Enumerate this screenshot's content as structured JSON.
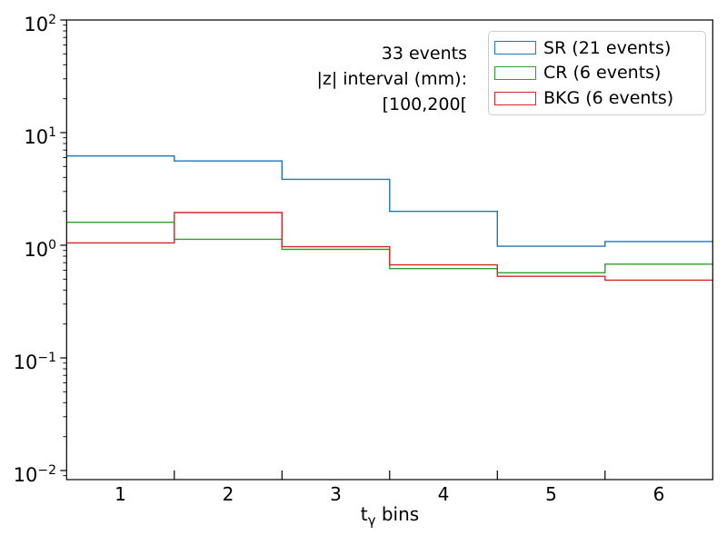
{
  "chart_data": {
    "type": "step-histogram",
    "yscale": "log",
    "grid": false,
    "xlim": [
      0.5,
      6.5
    ],
    "ylim": [
      0.01,
      100
    ],
    "x_bin_edges": [
      0.5,
      1.5,
      2.5,
      3.5,
      4.5,
      5.5,
      6.5
    ],
    "x_tick_labels": [
      "1",
      "2",
      "3",
      "4",
      "5",
      "6"
    ],
    "y_tick_exponents": [
      2,
      1,
      0,
      -1,
      -2
    ],
    "xlabel": {
      "pre": "t",
      "sub": "γ",
      "post": " bins"
    },
    "series": [
      {
        "name": "SR",
        "label": "SR (21 events)",
        "color": "#1f77b4",
        "values": [
          6.2,
          5.6,
          3.85,
          2.0,
          0.98,
          1.08
        ]
      },
      {
        "name": "CR",
        "label": "CR (6 events)",
        "color": "#2ca02c",
        "values": [
          1.6,
          1.13,
          0.92,
          0.62,
          0.57,
          0.68
        ]
      },
      {
        "name": "BKG",
        "label": "BKG (6 events)",
        "color": "#d62728",
        "values": [
          1.05,
          1.95,
          0.97,
          0.67,
          0.53,
          0.49
        ]
      }
    ],
    "legend": {
      "position": "upper right"
    },
    "annotation": {
      "align": "right",
      "lines": [
        "33 events",
        "|z| interval (mm):",
        "[100,200["
      ]
    }
  }
}
